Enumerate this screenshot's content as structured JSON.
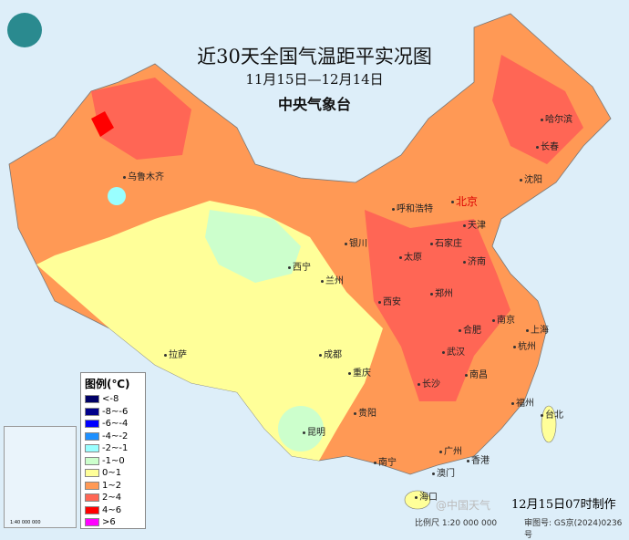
{
  "title": "近30天全国气温距平实况图",
  "period": "11月15日—12月14日",
  "agency": "中央气象台",
  "legend": {
    "title": "图例(℃)",
    "items": [
      {
        "label": "<-8",
        "color": "#000066"
      },
      {
        "label": "-8~-6",
        "color": "#00008b"
      },
      {
        "label": "-6~-4",
        "color": "#0000ff"
      },
      {
        "label": "-4~-2",
        "color": "#1e90ff"
      },
      {
        "label": "-2~-1",
        "color": "#99ffff"
      },
      {
        "label": "-1~0",
        "color": "#ccffcc"
      },
      {
        "label": "0~1",
        "color": "#ffff99"
      },
      {
        "label": "1~2",
        "color": "#ff9955"
      },
      {
        "label": "2~4",
        "color": "#ff6655"
      },
      {
        "label": "4~6",
        "color": "#ff0000"
      },
      {
        "label": ">6",
        "color": "#ff00ff"
      }
    ]
  },
  "made": "12月15日07时制作",
  "scale": "比例尺 1:20 000 000",
  "review": "审图号: GS京(2024)0236号",
  "inset_scale": "1:40 000 000",
  "watermark": "@中国天气",
  "cities": [
    "乌鲁木齐",
    "拉萨",
    "西宁",
    "兰州",
    "银川",
    "呼和浩特",
    "北京",
    "天津",
    "石家庄",
    "太原",
    "济南",
    "郑州",
    "西安",
    "成都",
    "重庆",
    "贵阳",
    "昆明",
    "南宁",
    "广州",
    "澳门",
    "香港",
    "海口",
    "长沙",
    "武汉",
    "南昌",
    "合肥",
    "南京",
    "上海",
    "杭州",
    "福州",
    "台北",
    "哈尔滨",
    "长春",
    "沈阳"
  ]
}
